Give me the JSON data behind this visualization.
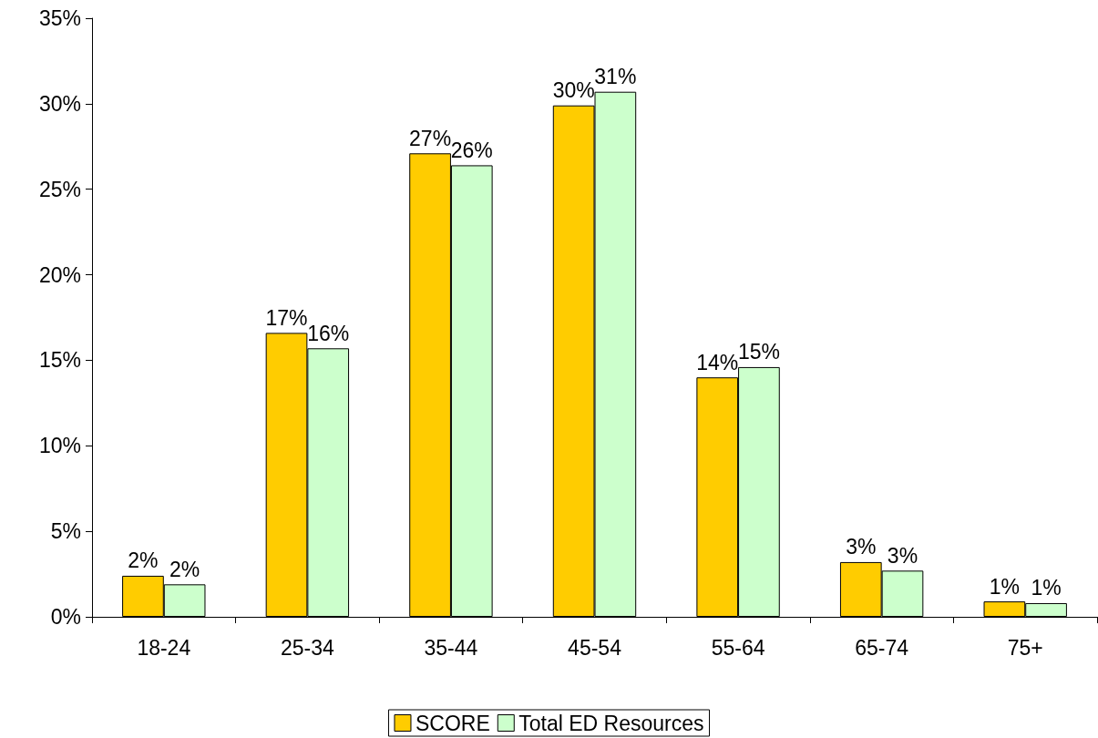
{
  "chart_data": {
    "type": "bar",
    "categories": [
      "18-24",
      "25-34",
      "35-44",
      "45-54",
      "55-64",
      "65-74",
      "75+"
    ],
    "series": [
      {
        "name": "SCORE",
        "color": "#ffcc00",
        "values": [
          2.4,
          16.6,
          27.1,
          29.9,
          14.0,
          3.2,
          0.9
        ],
        "value_labels": [
          "2%",
          "17%",
          "27%",
          "30%",
          "14%",
          "3%",
          "1%"
        ]
      },
      {
        "name": "Total ED Resources",
        "color": "#ccffcc",
        "values": [
          1.9,
          15.7,
          26.4,
          30.7,
          14.6,
          2.7,
          0.8
        ],
        "value_labels": [
          "2%",
          "16%",
          "26%",
          "31%",
          "15%",
          "3%",
          "1%"
        ]
      }
    ],
    "ylim": [
      0,
      35
    ],
    "yticks": [
      {
        "value": 0,
        "label": "0%"
      },
      {
        "value": 5,
        "label": "5%"
      },
      {
        "value": 10,
        "label": "10%"
      },
      {
        "value": 15,
        "label": "15%"
      },
      {
        "value": 20,
        "label": "20%"
      },
      {
        "value": 25,
        "label": "25%"
      },
      {
        "value": 30,
        "label": "30%"
      },
      {
        "value": 35,
        "label": "35%"
      }
    ],
    "grid": false,
    "legend": "bottom"
  }
}
